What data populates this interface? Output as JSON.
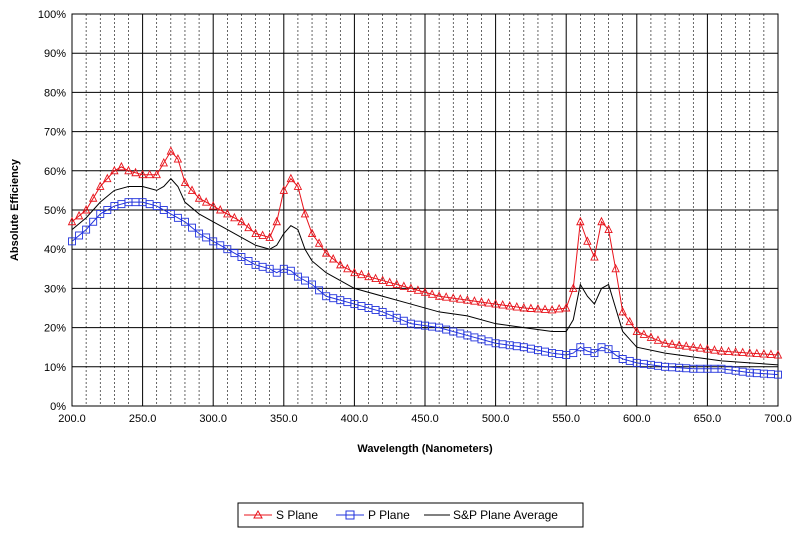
{
  "chart_data": {
    "type": "line",
    "title": "",
    "xlabel": "Wavelength (Nanometers)",
    "ylabel": "Absolute Efficiency",
    "xlim": [
      200,
      700
    ],
    "ylim": [
      0,
      100
    ],
    "x_ticks": [
      "200.0",
      "250.0",
      "300.0",
      "350.0",
      "400.0",
      "450.0",
      "500.0",
      "550.0",
      "600.0",
      "650.0",
      "700.0"
    ],
    "y_ticks": [
      "0%",
      "10%",
      "20%",
      "30%",
      "40%",
      "50%",
      "60%",
      "70%",
      "80%",
      "90%",
      "100%"
    ],
    "grid": true,
    "legend_position": "bottom",
    "series": [
      {
        "name": "S Plane",
        "color": "#e8131b",
        "marker": "triangle",
        "x": [
          200,
          210,
          220,
          230,
          235,
          240,
          250,
          260,
          265,
          270,
          275,
          280,
          290,
          300,
          310,
          320,
          330,
          340,
          345,
          350,
          355,
          360,
          365,
          370,
          380,
          390,
          400,
          420,
          440,
          460,
          480,
          500,
          520,
          540,
          550,
          555,
          560,
          565,
          570,
          575,
          580,
          585,
          590,
          600,
          620,
          640,
          660,
          680,
          700
        ],
        "y": [
          47,
          50,
          56,
          60,
          61,
          60,
          59,
          59,
          62,
          65,
          63,
          57,
          53,
          51,
          49,
          47,
          44,
          43,
          47,
          55,
          58,
          56,
          49,
          44,
          39,
          36,
          34,
          32,
          30,
          28,
          27,
          26,
          25,
          24.5,
          25,
          30,
          47,
          42,
          38,
          47,
          45,
          35,
          24,
          19,
          16,
          15,
          14,
          13.5,
          13
        ]
      },
      {
        "name": "P Plane",
        "color": "#2233dd",
        "marker": "square",
        "x": [
          200,
          210,
          220,
          230,
          240,
          250,
          260,
          270,
          280,
          290,
          300,
          310,
          320,
          330,
          340,
          345,
          350,
          355,
          360,
          370,
          380,
          400,
          420,
          440,
          460,
          480,
          500,
          520,
          540,
          550,
          555,
          560,
          565,
          570,
          575,
          580,
          585,
          590,
          600,
          620,
          640,
          660,
          680,
          700
        ],
        "y": [
          42,
          45,
          49,
          51,
          52,
          52,
          51,
          49,
          47,
          44,
          42,
          40,
          38,
          36,
          35,
          34,
          35,
          34.5,
          33,
          31,
          28,
          26,
          24,
          21,
          20,
          18,
          16,
          15,
          13.5,
          13,
          13.5,
          15,
          14,
          13.5,
          15,
          14.5,
          13,
          12,
          11,
          10,
          9.5,
          9.5,
          8.5,
          8
        ]
      },
      {
        "name": "S&P Plane Average",
        "color": "#000000",
        "marker": "none",
        "x": [
          200,
          210,
          220,
          230,
          240,
          250,
          260,
          265,
          270,
          275,
          280,
          290,
          300,
          310,
          320,
          330,
          340,
          345,
          350,
          355,
          360,
          365,
          370,
          380,
          400,
          420,
          440,
          460,
          480,
          500,
          520,
          540,
          550,
          555,
          560,
          565,
          570,
          575,
          580,
          585,
          590,
          600,
          620,
          640,
          660,
          680,
          700
        ],
        "y": [
          45,
          48,
          52,
          55,
          56,
          56,
          55,
          56,
          58,
          56,
          52,
          49,
          47,
          45,
          43,
          41,
          40,
          41,
          44,
          46,
          45,
          40,
          37,
          34,
          30,
          28,
          26,
          24,
          23,
          21,
          20,
          19,
          19,
          22,
          31,
          28,
          26,
          30,
          31,
          25,
          19,
          15,
          13.5,
          12.5,
          11.5,
          11,
          10.5
        ]
      }
    ]
  }
}
